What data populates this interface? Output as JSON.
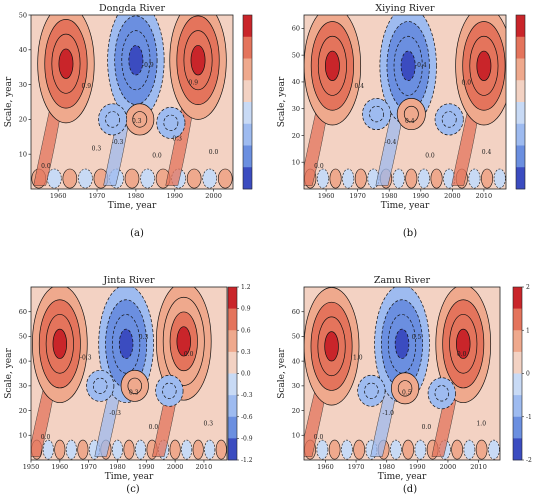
{
  "colors": {
    "scale": [
      "#3b4cc0",
      "#6b8fe0",
      "#9ebbf0",
      "#c8daf5",
      "#f3d2c3",
      "#efa98d",
      "#e4745c",
      "#c9252a"
    ]
  },
  "chart_data": [
    {
      "type": "heatmap",
      "subtype": "wavelet-contour",
      "title": "Dongda River",
      "xlabel": "Time, year",
      "ylabel": "Scale, year",
      "panel_label": "(a)",
      "xlim": [
        1953,
        2005
      ],
      "ylim": [
        0,
        50
      ],
      "xticks": [
        "1960",
        "1970",
        "1980",
        "1990",
        "2000"
      ],
      "yticks": [
        "10",
        "20",
        "30",
        "40",
        "50"
      ],
      "colorbar_ticks": [],
      "contour_labels": [
        "0.0",
        "0.0",
        "0.0",
        "-0.3",
        "0.3",
        "0.9",
        "-0.9",
        "0.9",
        "0.3",
        "0.3"
      ],
      "centers": [
        {
          "x": 1962,
          "y": 36,
          "value": 1.2
        },
        {
          "x": 1980,
          "y": 37,
          "value": -1.2
        },
        {
          "x": 1996,
          "y": 37,
          "value": 1.2
        },
        {
          "x": 1981,
          "y": 20,
          "value": 0.4
        },
        {
          "x": 1974,
          "y": 20,
          "value": -0.4
        },
        {
          "x": 1989,
          "y": 19,
          "value": -0.4
        }
      ]
    },
    {
      "type": "heatmap",
      "subtype": "wavelet-contour",
      "title": "Xiying River",
      "xlabel": "Time, year",
      "ylabel": "Scale, year",
      "panel_label": "(b)",
      "xlim": [
        1953,
        2017
      ],
      "ylim": [
        0,
        65
      ],
      "xticks": [
        "1960",
        "1970",
        "1980",
        "1990",
        "2000",
        "2010"
      ],
      "yticks": [
        "10",
        "20",
        "30",
        "40",
        "50",
        "60"
      ],
      "colorbar_ticks": [],
      "contour_labels": [
        "0.0",
        "0.0",
        "0.4",
        "-0.4",
        "0.4",
        "0.4",
        "-0.4",
        "0.0"
      ],
      "centers": [
        {
          "x": 1962,
          "y": 46,
          "value": 1.2
        },
        {
          "x": 1986,
          "y": 46,
          "value": -1.2
        },
        {
          "x": 2010,
          "y": 46,
          "value": 1.2
        },
        {
          "x": 1987,
          "y": 28,
          "value": 0.4
        },
        {
          "x": 1976,
          "y": 28,
          "value": -0.4
        },
        {
          "x": 1999,
          "y": 26,
          "value": -0.4
        }
      ]
    },
    {
      "type": "heatmap",
      "subtype": "wavelet-contour",
      "title": "Jinta River",
      "xlabel": "Time, year",
      "ylabel": "Scale, year",
      "panel_label": "(c)",
      "xlim": [
        1950,
        2018
      ],
      "ylim": [
        0,
        70
      ],
      "xticks": [
        "1950",
        "1960",
        "1970",
        "1980",
        "1990",
        "2000",
        "2010"
      ],
      "yticks": [
        "10",
        "20",
        "30",
        "40",
        "50",
        "60"
      ],
      "colorbar_ticks": [
        "1.2",
        "0.9",
        "0.6",
        "0.3",
        "0.0",
        "-0.3",
        "-0.6",
        "-0.9",
        "-1.2"
      ],
      "contour_labels": [
        "0.0",
        "0.0",
        "0.3",
        "-0.3",
        "0.3",
        "-0.3",
        "0.3",
        "0.0"
      ],
      "centers": [
        {
          "x": 1960,
          "y": 47,
          "value": 1.2
        },
        {
          "x": 1983,
          "y": 47,
          "value": -1.2
        },
        {
          "x": 2003,
          "y": 48,
          "value": 1.0
        },
        {
          "x": 1986,
          "y": 30,
          "value": 0.4
        },
        {
          "x": 1974,
          "y": 30,
          "value": -0.4
        },
        {
          "x": 1998,
          "y": 28,
          "value": -0.4
        }
      ]
    },
    {
      "type": "heatmap",
      "subtype": "wavelet-contour",
      "title": "Zamu River",
      "xlabel": "Time, year",
      "ylabel": "Scale, year",
      "panel_label": "(d)",
      "xlim": [
        1953,
        2017
      ],
      "ylim": [
        0,
        70
      ],
      "xticks": [
        "1960",
        "1970",
        "1980",
        "1990",
        "2000",
        "2010"
      ],
      "yticks": [
        "10",
        "20",
        "30",
        "40",
        "50",
        "60"
      ],
      "colorbar_ticks": [
        "2",
        "1",
        "0",
        "-1",
        "-2"
      ],
      "contour_labels": [
        "0.0",
        "0.0",
        "1.0",
        "-1.0",
        "0.5",
        "1.0",
        "0.5",
        "0.0"
      ],
      "centers": [
        {
          "x": 1962,
          "y": 46,
          "value": 2.0
        },
        {
          "x": 1985,
          "y": 47,
          "value": -2.0
        },
        {
          "x": 2005,
          "y": 47,
          "value": 2.0
        },
        {
          "x": 1986,
          "y": 29,
          "value": 0.8
        },
        {
          "x": 1975,
          "y": 28,
          "value": -0.8
        },
        {
          "x": 1998,
          "y": 27,
          "value": -0.8
        }
      ]
    }
  ]
}
